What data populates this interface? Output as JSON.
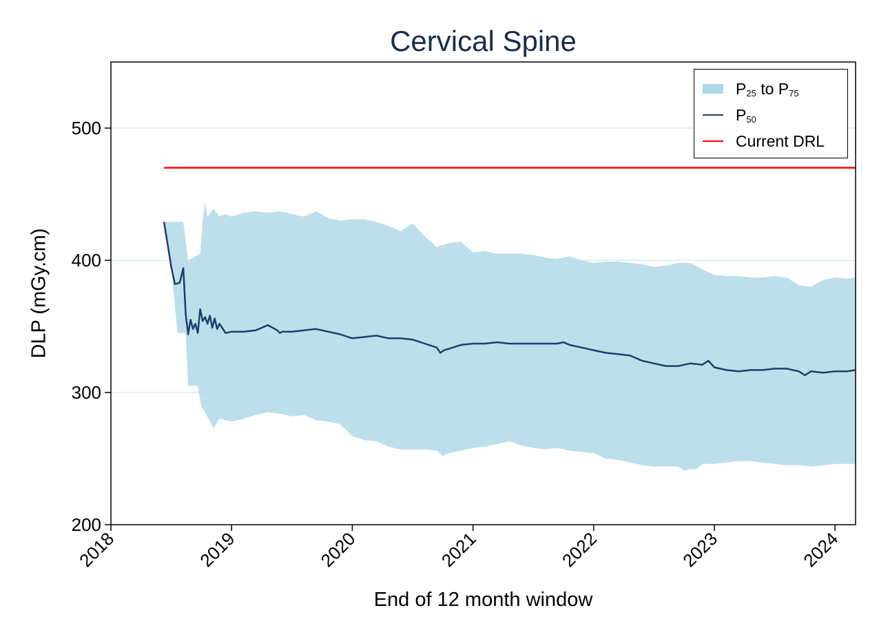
{
  "chart_data": {
    "type": "area",
    "title": "Cervical Spine",
    "xlabel": "End of 12 month window",
    "ylabel": "DLP (mGy.cm)",
    "xlim": [
      2018.0,
      2024.17
    ],
    "ylim": [
      200,
      550
    ],
    "xticks": [
      "2018",
      "2019",
      "2020",
      "2021",
      "2022",
      "2023",
      "2024"
    ],
    "yticks": [
      "200",
      "300",
      "400",
      "500"
    ],
    "gridlines": [
      300,
      400,
      500
    ],
    "legend": {
      "position": "top-right",
      "entries": [
        {
          "label": "P",
          "sub": "25",
          "mid": " to P",
          "sub2": "75",
          "kind": "band",
          "color": "#add8e6"
        },
        {
          "label": "P",
          "sub": "50",
          "kind": "line",
          "color": "#1b3f6b"
        },
        {
          "label": "Current DRL",
          "kind": "line",
          "color": "#ff0000"
        }
      ]
    },
    "series": [
      {
        "name": "Current DRL",
        "color": "#ff0000",
        "x": [
          2018.44,
          2024.17
        ],
        "values": [
          470,
          470
        ]
      },
      {
        "name": "P50",
        "color": "#1b3f6b",
        "x": [
          2018.44,
          2018.5,
          2018.53,
          2018.57,
          2018.6,
          2018.62,
          2018.64,
          2018.66,
          2018.68,
          2018.7,
          2018.72,
          2018.74,
          2018.76,
          2018.78,
          2018.8,
          2018.82,
          2018.84,
          2018.86,
          2018.88,
          2018.9,
          2018.95,
          2019.0,
          2019.1,
          2019.2,
          2019.3,
          2019.38,
          2019.4,
          2019.42,
          2019.5,
          2019.6,
          2019.7,
          2019.8,
          2019.9,
          2020.0,
          2020.1,
          2020.2,
          2020.3,
          2020.4,
          2020.5,
          2020.6,
          2020.7,
          2020.73,
          2020.76,
          2020.8,
          2020.9,
          2021.0,
          2021.1,
          2021.2,
          2021.3,
          2021.4,
          2021.5,
          2021.6,
          2021.7,
          2021.75,
          2021.8,
          2021.9,
          2022.0,
          2022.1,
          2022.2,
          2022.3,
          2022.4,
          2022.5,
          2022.6,
          2022.7,
          2022.75,
          2022.8,
          2022.9,
          2022.95,
          2023.0,
          2023.1,
          2023.2,
          2023.3,
          2023.4,
          2023.5,
          2023.6,
          2023.7,
          2023.75,
          2023.8,
          2023.9,
          2024.0,
          2024.1,
          2024.17
        ],
        "values": [
          429,
          395,
          382,
          383,
          394,
          359,
          344,
          355,
          348,
          352,
          345,
          363,
          354,
          357,
          352,
          358,
          349,
          356,
          348,
          352,
          345,
          346,
          346,
          347,
          351,
          347,
          345,
          346,
          346,
          347,
          348,
          346,
          344,
          341,
          342,
          343,
          341,
          341,
          340,
          337,
          334,
          330,
          332,
          333,
          336,
          337,
          337,
          338,
          337,
          337,
          337,
          337,
          337,
          338,
          336,
          334,
          332,
          330,
          329,
          328,
          324,
          322,
          320,
          320,
          321,
          322,
          321,
          324,
          319,
          317,
          316,
          317,
          317,
          318,
          318,
          316,
          313,
          316,
          315,
          316,
          316,
          317
        ]
      },
      {
        "name": "P75",
        "color": "#add8e6",
        "x": [
          2018.44,
          2018.55,
          2018.6,
          2018.64,
          2018.68,
          2018.72,
          2018.74,
          2018.76,
          2018.78,
          2018.8,
          2018.85,
          2018.9,
          2018.95,
          2019.0,
          2019.1,
          2019.2,
          2019.3,
          2019.4,
          2019.5,
          2019.6,
          2019.7,
          2019.8,
          2019.9,
          2020.0,
          2020.1,
          2020.2,
          2020.3,
          2020.4,
          2020.5,
          2020.6,
          2020.65,
          2020.7,
          2020.8,
          2020.9,
          2021.0,
          2021.1,
          2021.2,
          2021.3,
          2021.4,
          2021.5,
          2021.6,
          2021.7,
          2021.8,
          2021.9,
          2022.0,
          2022.1,
          2022.2,
          2022.3,
          2022.4,
          2022.5,
          2022.6,
          2022.7,
          2022.8,
          2022.9,
          2023.0,
          2023.1,
          2023.2,
          2023.3,
          2023.4,
          2023.5,
          2023.6,
          2023.7,
          2023.8,
          2023.9,
          2024.0,
          2024.1,
          2024.17
        ],
        "values": [
          429,
          429,
          429,
          400,
          402,
          404,
          405,
          430,
          444,
          433,
          439,
          433,
          435,
          433,
          436,
          437,
          436,
          437,
          435,
          433,
          437,
          432,
          430,
          431,
          431,
          429,
          426,
          422,
          428,
          418,
          414,
          410,
          413,
          414,
          406,
          407,
          405,
          405,
          405,
          404,
          402,
          401,
          403,
          400,
          398,
          399,
          399,
          398,
          397,
          395,
          396,
          398,
          398,
          393,
          389,
          388,
          388,
          387,
          387,
          388,
          387,
          381,
          380,
          385,
          387,
          386,
          387
        ]
      },
      {
        "name": "P25",
        "color": "#add8e6",
        "x": [
          2018.44,
          2018.5,
          2018.55,
          2018.6,
          2018.62,
          2018.64,
          2018.68,
          2018.72,
          2018.75,
          2018.78,
          2018.82,
          2018.85,
          2018.9,
          2019.0,
          2019.1,
          2019.2,
          2019.3,
          2019.4,
          2019.5,
          2019.6,
          2019.7,
          2019.8,
          2019.9,
          2020.0,
          2020.1,
          2020.2,
          2020.3,
          2020.4,
          2020.5,
          2020.6,
          2020.7,
          2020.75,
          2020.8,
          2020.9,
          2021.0,
          2021.1,
          2021.2,
          2021.3,
          2021.4,
          2021.5,
          2021.6,
          2021.7,
          2021.8,
          2021.9,
          2022.0,
          2022.1,
          2022.2,
          2022.3,
          2022.4,
          2022.5,
          2022.6,
          2022.7,
          2022.75,
          2022.8,
          2022.85,
          2022.9,
          2023.0,
          2023.1,
          2023.2,
          2023.3,
          2023.4,
          2023.5,
          2023.6,
          2023.7,
          2023.8,
          2023.9,
          2024.0,
          2024.1,
          2024.17
        ],
        "values": [
          429,
          395,
          345,
          345,
          344,
          305,
          305,
          305,
          289,
          285,
          278,
          273,
          280,
          278,
          280,
          283,
          285,
          284,
          282,
          283,
          279,
          278,
          276,
          267,
          264,
          263,
          259,
          257,
          257,
          257,
          256,
          252,
          254,
          256,
          258,
          259,
          261,
          263,
          260,
          258,
          257,
          258,
          256,
          255,
          254,
          250,
          249,
          247,
          245,
          244,
          244,
          244,
          241,
          242,
          242,
          246,
          246,
          247,
          248,
          248,
          247,
          246,
          245,
          245,
          244,
          245,
          246,
          246,
          246
        ]
      }
    ]
  }
}
